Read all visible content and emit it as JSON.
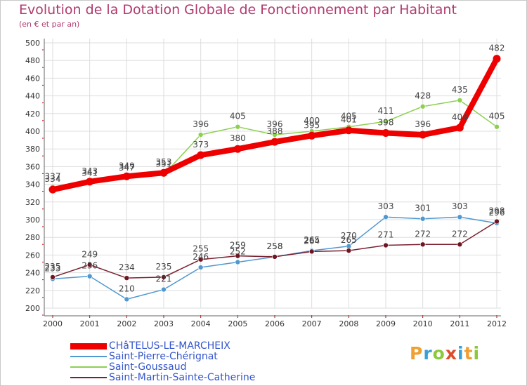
{
  "title": "Evolution de la Dotation Globale de Fonctionnement par Habitant",
  "subtitle": "(en € et par an)",
  "logo": {
    "letters": [
      "P",
      "r",
      "o",
      "x",
      "i",
      "t",
      "i"
    ],
    "colors": [
      "#f0a030",
      "#3aa0d8",
      "#8cc83c",
      "#e04a2a",
      "#3aa0d8",
      "#f0a030",
      "#8cc83c"
    ]
  },
  "colors": {
    "axis_tick_labels": "#333333",
    "grid": "#dddddd",
    "value_labels": "#444444",
    "axis": "#666666",
    "tick_marks": "#cc0000"
  },
  "chart_data": {
    "type": "line",
    "title": "Evolution de la Dotation Globale de Fonctionnement par Habitant",
    "subtitle": "(en € et par an)",
    "x": [
      "2000",
      "2001",
      "2002",
      "2003",
      "2004",
      "2005",
      "2006",
      "2007",
      "2008",
      "2009",
      "2010",
      "2011",
      "2012"
    ],
    "ylim": [
      200,
      500
    ],
    "yticks": [
      200,
      220,
      240,
      260,
      280,
      300,
      320,
      340,
      360,
      380,
      400,
      420,
      440,
      460,
      480,
      500
    ],
    "grid": true,
    "legend_position": "bottom-left",
    "series": [
      {
        "name": "Saint-Pierre-Chérignat",
        "color": "#4f98d0",
        "marker_fill": "#4f98d0",
        "values": [
          233,
          236,
          210,
          221,
          246,
          252,
          258,
          265,
          270,
          303,
          301,
          303,
          296
        ],
        "labels": [
          "233",
          "236",
          "210",
          "221",
          "246",
          "252",
          "258",
          "265",
          "270",
          "303",
          "301",
          "303",
          "296"
        ]
      },
      {
        "name": "Saint-Martin-Sainte-Catherine",
        "color": "#7a2030",
        "marker_fill": "#6e1522",
        "values": [
          235,
          249,
          234,
          235,
          255,
          259,
          258,
          264,
          265,
          271,
          272,
          272,
          298
        ],
        "labels": [
          "235",
          "249",
          "234",
          "235",
          "255",
          "259",
          "258",
          "264",
          "265",
          "271",
          "272",
          "272",
          "298"
        ]
      },
      {
        "name": "Saint-Goussaud",
        "color": "#8cd050",
        "marker_fill": "#8cd050",
        "values": [
          337,
          341,
          347,
          351,
          396,
          405,
          396,
          400,
          405,
          411,
          428,
          435,
          405
        ],
        "labels": [
          "337",
          "341",
          "347",
          "351",
          "396",
          "405",
          "396",
          "400",
          "405",
          "411",
          "428",
          "435",
          "405"
        ]
      },
      {
        "name": "CHâTELUS-LE-MARCHEIX",
        "color": "#ee0000",
        "marker_fill": "#ee0000",
        "values": [
          334,
          343,
          349,
          353,
          373,
          380,
          388,
          395,
          401,
          398,
          396,
          404,
          482
        ],
        "labels": [
          "334",
          "343",
          "349",
          "353",
          "373",
          "380",
          "388",
          "395",
          "401",
          "398",
          "396",
          "404",
          "482"
        ]
      }
    ],
    "legend": [
      "CHâTELUS-LE-MARCHEIX",
      "Saint-Pierre-Chérignat",
      "Saint-Goussaud",
      "Saint-Martin-Sainte-Catherine"
    ]
  }
}
